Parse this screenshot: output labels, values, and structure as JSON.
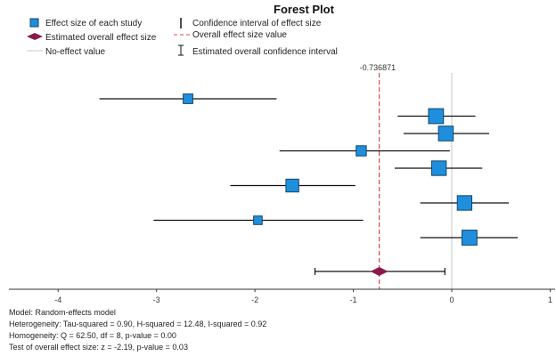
{
  "chart_data": {
    "type": "forest",
    "title": "Forest Plot",
    "legend": {
      "study_effect": "Effect size of each study",
      "overall_effect": "Estimated overall effect size",
      "no_effect": "No-effect value",
      "study_ci": "Confidence interval of effect size",
      "overall_line": "Overall effect size value",
      "overall_ci": "Estimated overall confidence interval"
    },
    "overall_label": "-0.736871",
    "xlim": [
      -4.5,
      1.05
    ],
    "ticks": [
      "-4",
      "-3",
      "-2",
      "-1",
      "0",
      "1"
    ],
    "tick_values": [
      -4,
      -3,
      -2,
      -1,
      0,
      1
    ],
    "no_effect_value": 0,
    "overall": {
      "estimate": -0.736871,
      "ci_low": -1.39,
      "ci_high": -0.07
    },
    "studies": [
      {
        "effect": -2.68,
        "ci_low": -3.58,
        "ci_high": -1.78,
        "weight": 0.4
      },
      {
        "effect": -0.16,
        "ci_low": -0.55,
        "ci_high": 0.24,
        "weight": 0.9
      },
      {
        "effect": -0.06,
        "ci_low": -0.49,
        "ci_high": 0.38,
        "weight": 0.88
      },
      {
        "effect": -0.92,
        "ci_low": -1.75,
        "ci_high": -0.02,
        "weight": 0.45
      },
      {
        "effect": -0.13,
        "ci_low": -0.58,
        "ci_high": 0.31,
        "weight": 0.86
      },
      {
        "effect": -1.62,
        "ci_low": -2.25,
        "ci_high": -0.98,
        "weight": 0.7
      },
      {
        "effect": 0.13,
        "ci_low": -0.32,
        "ci_high": 0.58,
        "weight": 0.86
      },
      {
        "effect": -1.97,
        "ci_low": -3.03,
        "ci_high": -0.9,
        "weight": 0.3
      },
      {
        "effect": 0.18,
        "ci_low": -0.32,
        "ci_high": 0.67,
        "weight": 0.9
      }
    ],
    "colors": {
      "study_fill": "#1f8fdd",
      "study_stroke": "#10456b",
      "overall_fill": "#8b1a4a",
      "overall_line": "#e04848",
      "no_effect_line": "#c8c8c8",
      "ci_line": "#111111"
    }
  },
  "notes": {
    "model": "Model: Random-effects model",
    "heterogeneity": "Heterogeneity: Tau-squared = 0.90, H-squared = 12.48, I-squared = 0.92",
    "homogeneity": "Homogeneity: Q = 62.50, df = 8, p-value = 0.00",
    "test": "Test of overall effect size: z = -2.19, p-value = 0.03"
  }
}
